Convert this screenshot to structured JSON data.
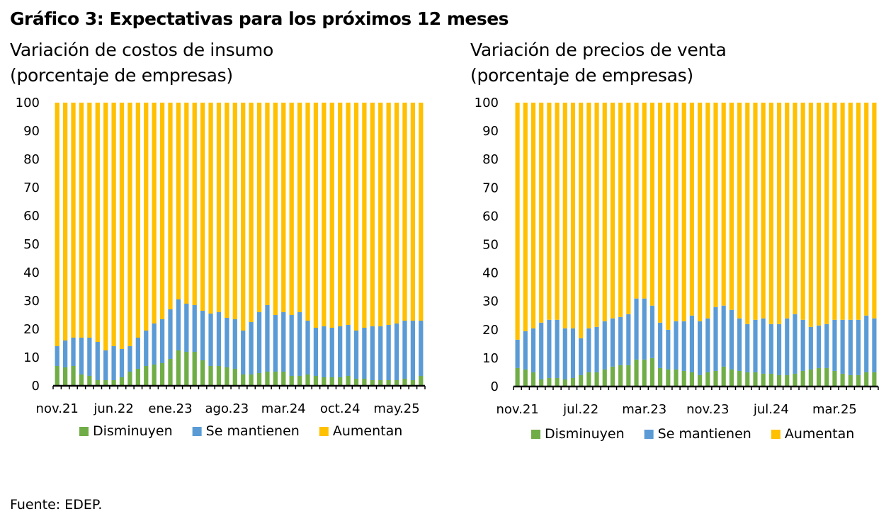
{
  "title": "Gráfico 3: Expectativas para los próximos 12 meses",
  "colors": {
    "disminuyen": "#70AD47",
    "se_mantienen": "#5B9BD5",
    "aumentan": "#FFC000",
    "axis": "#000000"
  },
  "source": "Fuente: EDEP.",
  "chart_data": [
    {
      "type": "bar",
      "stacked": true,
      "title": "Variación de costos de insumo",
      "subtitle": "(porcentaje de empresas)",
      "ylim": [
        0,
        100
      ],
      "yticks": [
        0,
        10,
        20,
        30,
        40,
        50,
        60,
        70,
        80,
        90,
        100
      ],
      "x_tick_labels": [
        {
          "index": 0,
          "label": "nov.21"
        },
        {
          "index": 7,
          "label": "jun.22"
        },
        {
          "index": 14,
          "label": "ene.23"
        },
        {
          "index": 21,
          "label": "ago.23"
        },
        {
          "index": 28,
          "label": "mar.24"
        },
        {
          "index": 35,
          "label": "oct.24"
        },
        {
          "index": 42,
          "label": "may.25"
        }
      ],
      "legend": [
        "Disminuyen",
        "Se mantienen",
        "Aumentan"
      ],
      "legend_position": "bottom",
      "series": [
        {
          "name": "Disminuyen",
          "values": [
            7,
            6.5,
            7,
            4,
            3.5,
            2,
            2,
            2,
            3,
            5,
            6,
            7,
            7.5,
            8,
            9.5,
            12.5,
            12,
            12,
            9,
            7,
            7,
            6.5,
            6,
            4,
            4,
            4.5,
            5,
            5,
            5,
            3.5,
            3.5,
            4,
            3.5,
            3,
            3,
            3,
            3.5,
            2.5,
            2.5,
            2,
            2,
            2,
            2,
            2.5,
            2,
            3.5
          ]
        },
        {
          "name": "Se mantienen",
          "values": [
            7,
            9.5,
            10,
            13,
            13.5,
            13.5,
            10.5,
            12,
            10,
            9,
            11,
            12.5,
            14.5,
            15.5,
            17.5,
            18,
            17,
            16.5,
            17.5,
            18.5,
            19,
            17.5,
            17.5,
            15.5,
            18.5,
            21.5,
            23.5,
            20,
            21,
            21.5,
            22.5,
            19,
            17,
            18,
            17.5,
            18,
            18,
            17,
            18,
            19,
            19,
            19.5,
            20,
            20.5,
            21,
            19.5
          ]
        },
        {
          "name": "Aumentan",
          "values": [
            86,
            84,
            83,
            83,
            83,
            84.5,
            87.5,
            86,
            87,
            86,
            83,
            80.5,
            78,
            76.5,
            73,
            69.5,
            71,
            71.5,
            73.5,
            74.5,
            74,
            76,
            76.5,
            80.5,
            77.5,
            74,
            71.5,
            75,
            74,
            75,
            74,
            77,
            79.5,
            79,
            79.5,
            79,
            78.5,
            80.5,
            79.5,
            79,
            79,
            78.5,
            78,
            77,
            77,
            77
          ]
        }
      ]
    },
    {
      "type": "bar",
      "stacked": true,
      "title": "Variación de precios de venta",
      "subtitle": "(porcentaje de empresas)",
      "ylim": [
        0,
        100
      ],
      "yticks": [
        0,
        10,
        20,
        30,
        40,
        50,
        60,
        70,
        80,
        90,
        100
      ],
      "x_tick_labels": [
        {
          "index": 0,
          "label": "nov.21"
        },
        {
          "index": 8,
          "label": "jul.22"
        },
        {
          "index": 16,
          "label": "mar.23"
        },
        {
          "index": 24,
          "label": "nov.23"
        },
        {
          "index": 32,
          "label": "jul.24"
        },
        {
          "index": 40,
          "label": "mar.25"
        }
      ],
      "legend": [
        "Disminuyen",
        "Se mantienen",
        "Aumentan"
      ],
      "legend_position": "bottom",
      "series": [
        {
          "name": "Disminuyen",
          "values": [
            6.5,
            6,
            5,
            2.5,
            3,
            3,
            2.5,
            3,
            4,
            5,
            5,
            6,
            7,
            7.5,
            7.5,
            9.5,
            9.5,
            10,
            6.5,
            6,
            6,
            5.5,
            5,
            4,
            5,
            5.5,
            7,
            6,
            5.5,
            5,
            5,
            4.5,
            4.5,
            4,
            4,
            4.5,
            5.5,
            6,
            6.5,
            6.5,
            5.5,
            4.5,
            4,
            4,
            5,
            5
          ]
        },
        {
          "name": "Se mantienen",
          "values": [
            10,
            13.5,
            15.5,
            20,
            20.5,
            20.5,
            18,
            17.5,
            13,
            15.5,
            16,
            17,
            17,
            17,
            18,
            21.5,
            21.5,
            18.5,
            16,
            14,
            17,
            17.5,
            20,
            19,
            19,
            22.5,
            21.5,
            21,
            18.5,
            17,
            18.5,
            19.5,
            17.5,
            18,
            20,
            21,
            18,
            15,
            15,
            15.5,
            18,
            19,
            19.5,
            19.5,
            20,
            19
          ]
        },
        {
          "name": "Aumentan",
          "values": [
            83.5,
            80.5,
            79.5,
            77.5,
            76.5,
            76.5,
            79.5,
            79.5,
            83,
            79.5,
            79,
            77,
            76,
            75.5,
            74.5,
            69,
            69,
            71.5,
            77.5,
            80,
            77,
            77,
            75,
            77,
            76,
            72,
            71.5,
            73,
            76,
            78,
            76.5,
            76,
            78,
            78,
            76,
            74.5,
            76.5,
            79,
            78.5,
            78,
            76.5,
            76.5,
            76.5,
            76.5,
            75,
            76
          ]
        }
      ]
    }
  ]
}
